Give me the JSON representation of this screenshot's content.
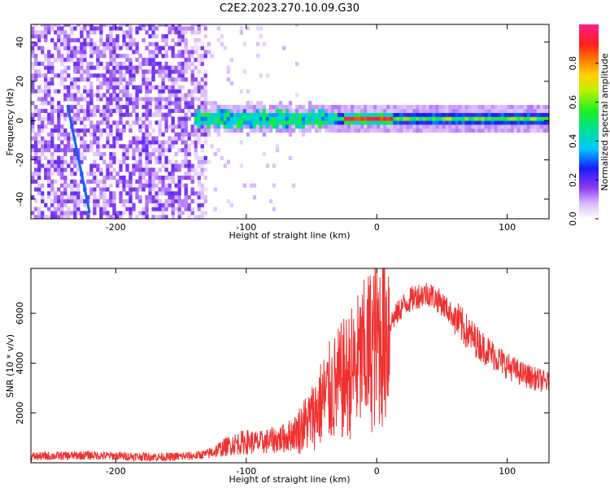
{
  "title": "C2E2.2023.270.10.09.G30",
  "chart_data": [
    {
      "type": "heatmap",
      "xlabel": "Height of straight line (km)",
      "ylabel": "Frequency (Hz)",
      "xlim": [
        -265,
        132
      ],
      "ylim": [
        -50,
        49
      ],
      "xticks": [
        -200,
        -100,
        0,
        100
      ],
      "xtick_labels": [
        "-200",
        "-100",
        "0",
        "100"
      ],
      "yticks": [
        -40,
        -20,
        0,
        20,
        40
      ],
      "ytick_labels": [
        "-40",
        "-20",
        "0",
        "20",
        "40"
      ],
      "colorbar": {
        "label": "Normalized spectral amplitude",
        "range": [
          0,
          1
        ],
        "ticks": [
          0,
          0.2,
          0.4,
          0.6,
          0.8
        ],
        "tick_labels": [
          "0.0",
          "0.2",
          "0.4",
          "0.6",
          "0.8"
        ],
        "colormap": "rainbow (white-purple-blue-cyan-green-yellow-orange-red-magenta)"
      },
      "features": [
        {
          "kind": "noise",
          "x_range": [
            -265,
            -130
          ],
          "y_range": [
            -50,
            49
          ],
          "amplitude": 0.1
        },
        {
          "kind": "line",
          "from": [
            -237,
            8
          ],
          "to": [
            -220,
            -47
          ],
          "amplitude": 0.3
        },
        {
          "kind": "band",
          "x_range": [
            -140,
            132
          ],
          "center_freq": 0,
          "halfwidth_hz": 4,
          "peak_amplitude": 0.9,
          "peak_x_range": [
            -25,
            10
          ]
        }
      ],
      "grid": false
    },
    {
      "type": "line",
      "xlabel": "Height of straight line (km)",
      "ylabel": "SNR (10 * v/v)",
      "xlim": [
        -265,
        132
      ],
      "ylim": [
        0,
        7800
      ],
      "xticks": [
        -200,
        -100,
        0,
        100
      ],
      "xtick_labels": [
        "-200",
        "-100",
        "0",
        "100"
      ],
      "yticks": [
        2000,
        4000,
        6000
      ],
      "ytick_labels": [
        "2000",
        "4000",
        "6000"
      ],
      "color": "#f03030",
      "series": [
        {
          "x": [
            -265,
            -240,
            -220,
            -200,
            -180,
            -160,
            -140,
            -130,
            -120,
            -110,
            -100,
            -90,
            -80,
            -70,
            -60,
            -50,
            -40,
            -30,
            -20,
            -10,
            0,
            10,
            20,
            30,
            40,
            50,
            60,
            70,
            80,
            90,
            100,
            110,
            120,
            132
          ],
          "y": [
            250,
            280,
            300,
            270,
            250,
            230,
            280,
            350,
            550,
            750,
            850,
            800,
            900,
            1000,
            1300,
            1800,
            2600,
            3100,
            3600,
            4200,
            4900,
            5600,
            6300,
            6700,
            6800,
            6400,
            5800,
            5200,
            4700,
            4300,
            3900,
            3600,
            3400,
            3200
          ]
        }
      ],
      "grid": false
    }
  ]
}
